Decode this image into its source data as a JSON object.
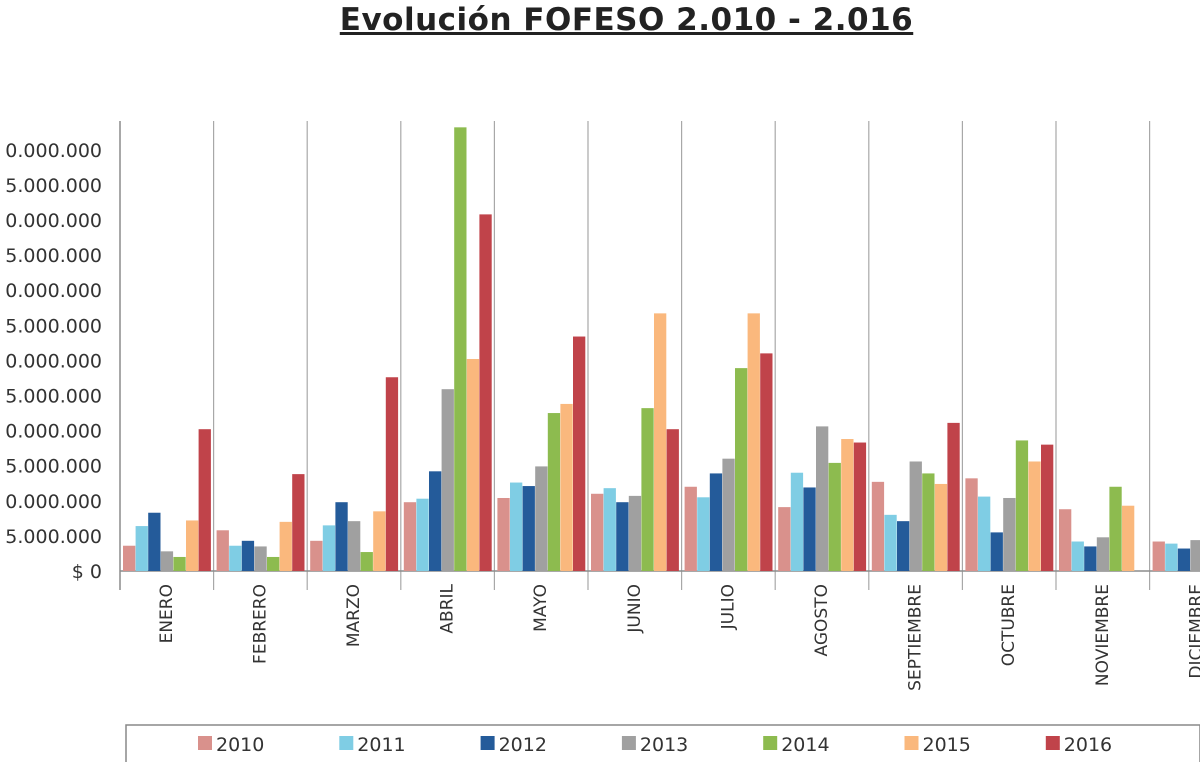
{
  "chart_data": {
    "type": "bar",
    "title": "Evolución FOFESO 2.010 - 2.016",
    "categories": [
      "ENERO",
      "FEBRERO",
      "MARZO",
      "ABRIL",
      "MAYO",
      "JUNIO",
      "JULIO",
      "AGOSTO",
      "SEPTIEMBRE",
      "OCTUBRE",
      "NOVIEMBRE",
      "DICIEMBRE"
    ],
    "y_tick_labels": [
      {
        "value": 0,
        "label": "$ 0"
      },
      {
        "value": 5000000,
        "label": "5.000.000"
      },
      {
        "value": 10000000,
        "label": "0.000.000"
      },
      {
        "value": 15000000,
        "label": "5.000.000"
      },
      {
        "value": 20000000,
        "label": "0.000.000"
      },
      {
        "value": 25000000,
        "label": "5.000.000"
      },
      {
        "value": 30000000,
        "label": "0.000.000"
      },
      {
        "value": 35000000,
        "label": "5.000.000"
      },
      {
        "value": 40000000,
        "label": "0.000.000"
      },
      {
        "value": 45000000,
        "label": "5.000.000"
      },
      {
        "value": 50000000,
        "label": "0.000.000"
      },
      {
        "value": 55000000,
        "label": "5.000.000"
      },
      {
        "value": 60000000,
        "label": "0.000.000"
      }
    ],
    "ylim": [
      0,
      64000000
    ],
    "grid": "vertical category separators",
    "legend_position": "bottom",
    "series": [
      {
        "name": "2010",
        "color": "#d9918c",
        "values": [
          3600000,
          5800000,
          4300000,
          9800000,
          10400000,
          11000000,
          12000000,
          9100000,
          12700000,
          13200000,
          8800000,
          4200000
        ]
      },
      {
        "name": "2011",
        "color": "#7fcde4",
        "values": [
          6400000,
          3600000,
          6500000,
          10300000,
          12600000,
          11800000,
          10500000,
          14000000,
          8000000,
          10600000,
          4200000,
          3900000
        ]
      },
      {
        "name": "2012",
        "color": "#245b9a",
        "values": [
          8300000,
          4300000,
          9800000,
          14200000,
          12100000,
          9800000,
          13900000,
          11900000,
          7100000,
          5500000,
          3500000,
          3200000
        ]
      },
      {
        "name": "2013",
        "color": "#a0a0a0",
        "values": [
          2800000,
          3500000,
          7100000,
          25900000,
          14900000,
          10700000,
          16000000,
          20600000,
          15600000,
          10400000,
          4800000,
          4400000
        ]
      },
      {
        "name": "2014",
        "color": "#8dbb4f",
        "values": [
          2000000,
          2000000,
          2700000,
          63200000,
          22500000,
          23200000,
          28900000,
          15400000,
          13900000,
          18600000,
          12000000,
          null
        ]
      },
      {
        "name": "2015",
        "color": "#fab87d",
        "values": [
          7200000,
          7000000,
          8500000,
          30200000,
          23800000,
          36700000,
          36700000,
          18800000,
          12400000,
          15600000,
          9300000,
          null
        ]
      },
      {
        "name": "2016",
        "color": "#c0434a",
        "values": [
          20200000,
          13800000,
          27600000,
          50800000,
          33400000,
          20200000,
          31000000,
          18300000,
          21100000,
          18000000,
          null,
          null
        ]
      }
    ]
  }
}
